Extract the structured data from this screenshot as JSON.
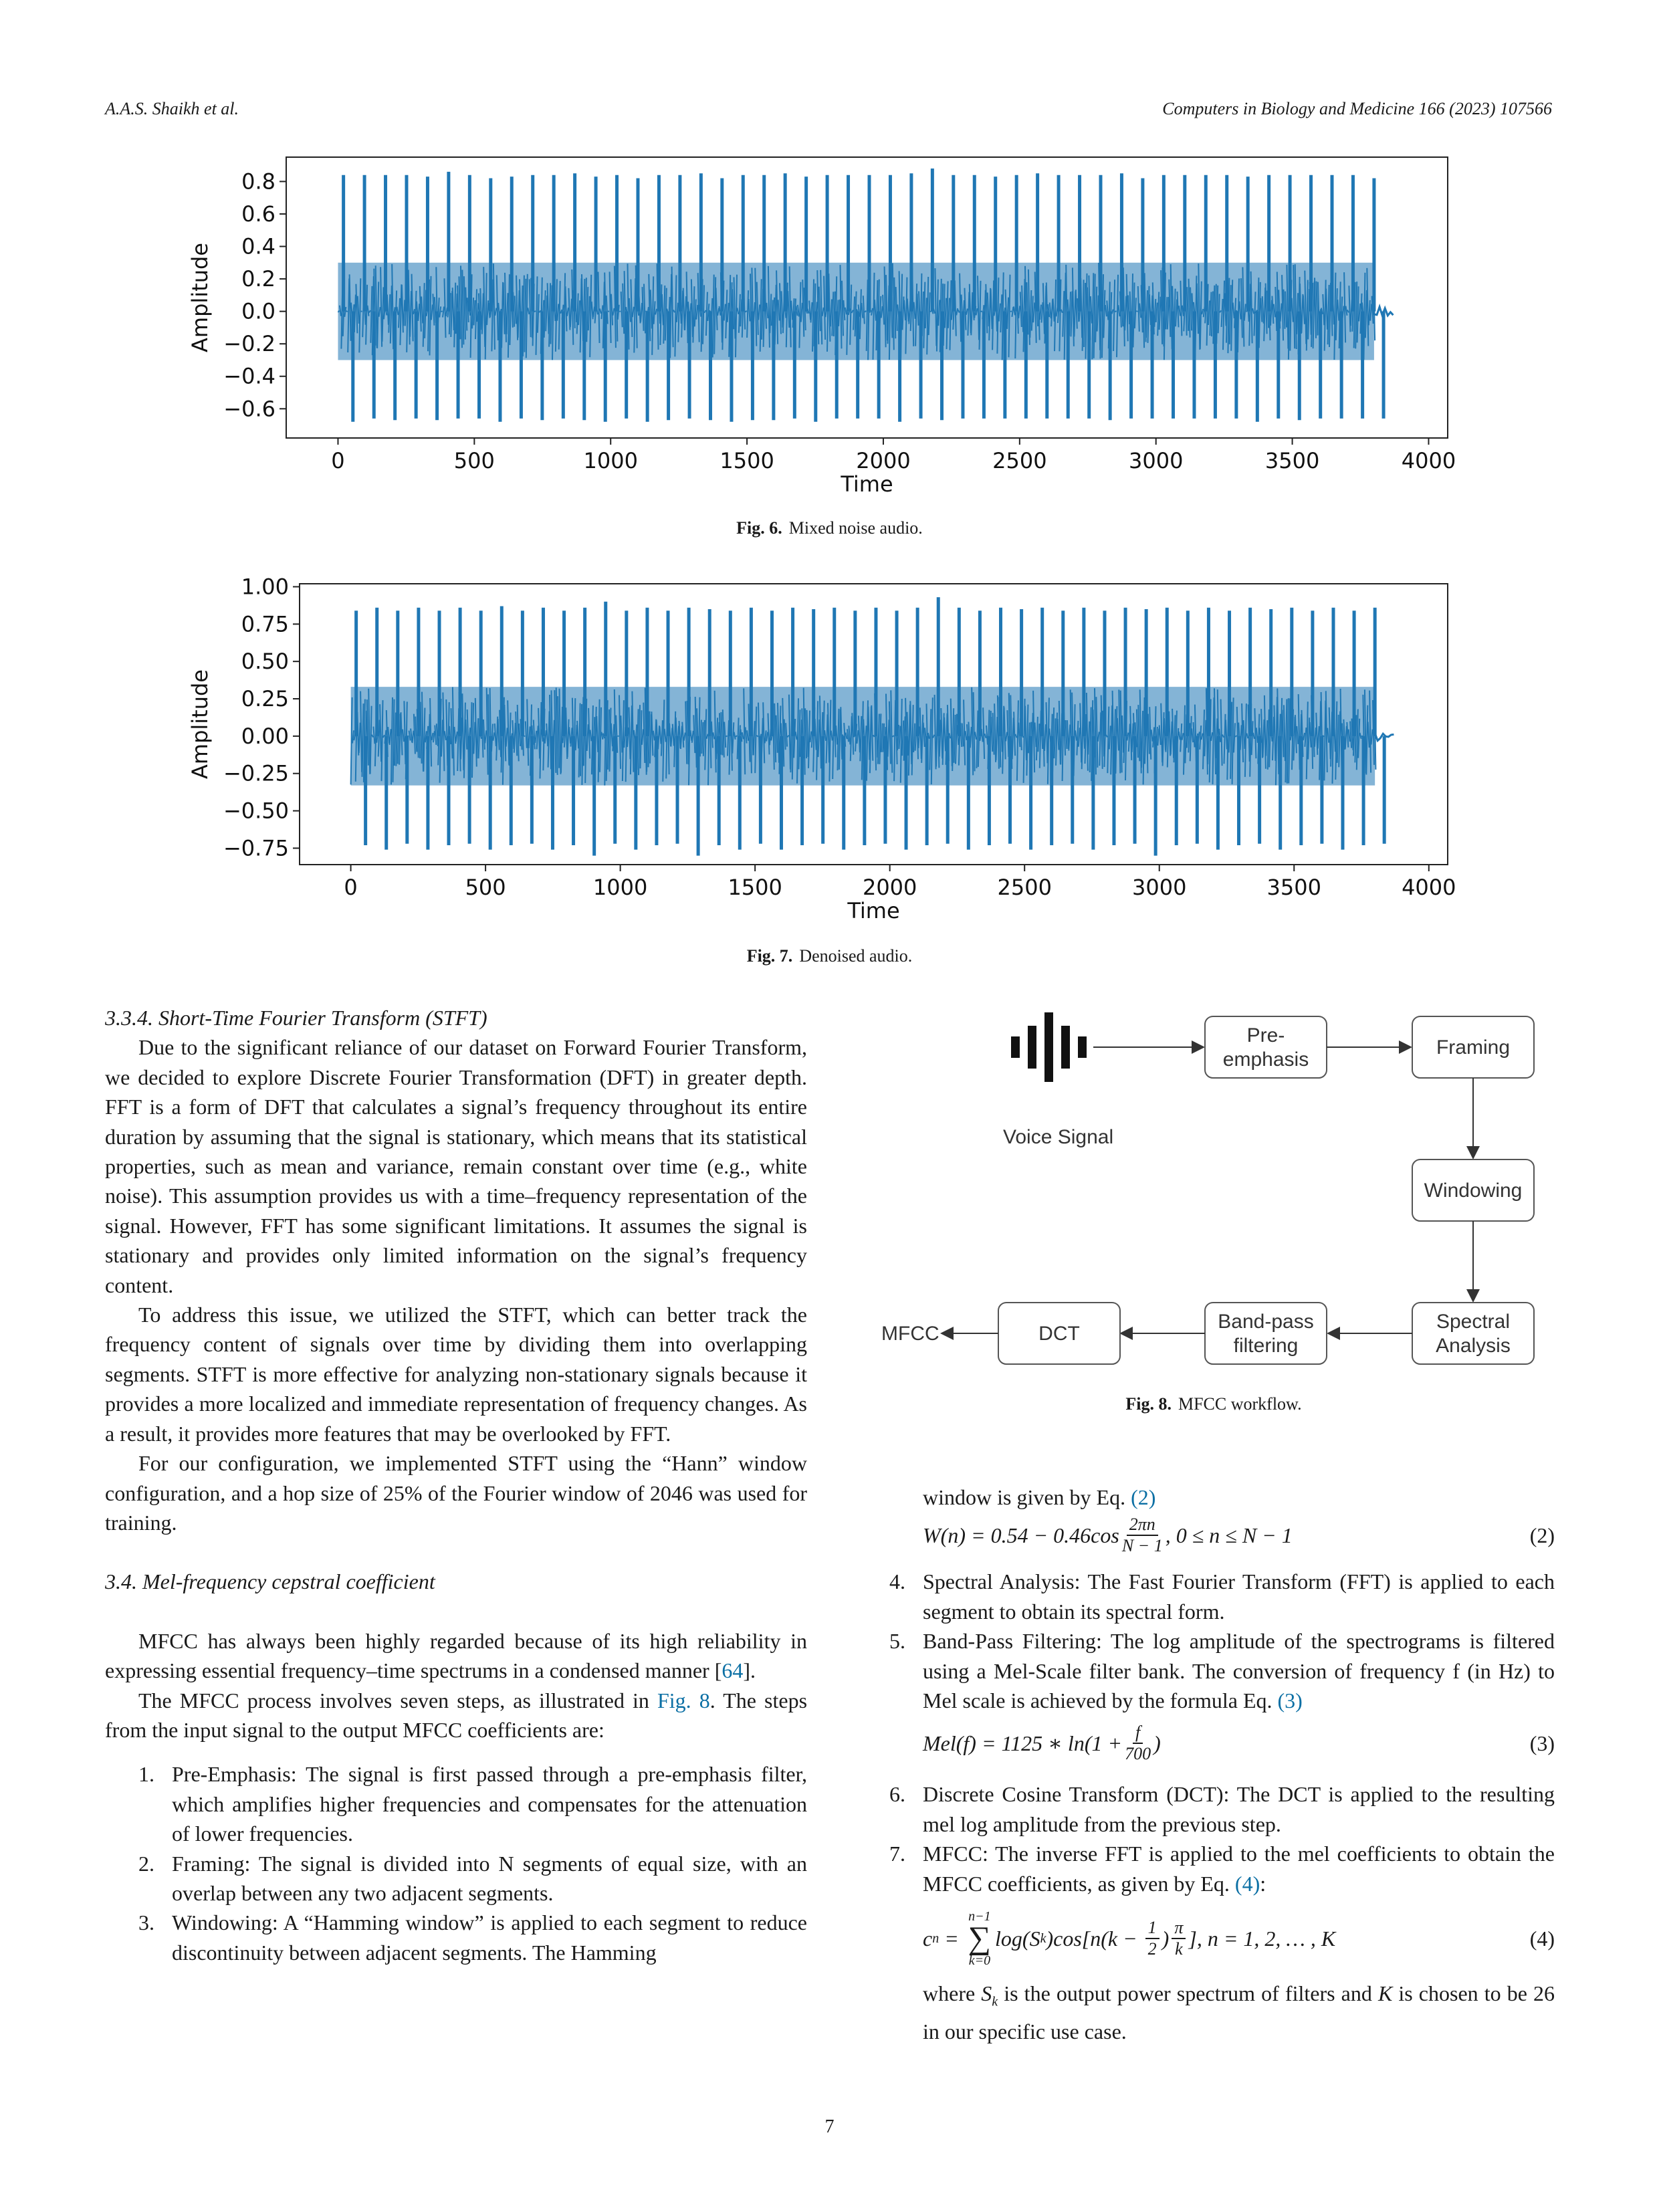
{
  "header": {
    "left": "A.A.S. Shaikh et al.",
    "right": "Computers in Biology and Medicine 166 (2023) 107566"
  },
  "figures": {
    "fig6": {
      "label": "Fig. 6.",
      "text": "Mixed noise audio."
    },
    "fig7": {
      "label": "Fig. 7.",
      "text": "Denoised audio."
    },
    "fig8": {
      "label": "Fig. 8.",
      "text": "MFCC workflow."
    }
  },
  "chart_data": [
    {
      "type": "line",
      "series_color": "#1f77b4",
      "xlabel": "Time",
      "ylabel": "Amplitude",
      "xticks": [
        "0",
        "500",
        "1000",
        "1500",
        "2000",
        "2500",
        "3000",
        "3500",
        "4000"
      ],
      "yticks": [
        "0.8",
        "0.6",
        "0.4",
        "0.2",
        "0.0",
        "−0.2",
        "−0.4",
        "−0.6"
      ],
      "xlim": [
        -190,
        4070
      ],
      "ylim": [
        -0.78,
        0.95
      ],
      "x_extent": [
        0,
        3870
      ],
      "signal_end": 3800,
      "peaks": [
        0.84,
        0.84,
        0.84,
        0.84,
        0.83,
        0.86,
        0.84,
        0.82,
        0.83,
        0.84,
        0.84,
        0.85,
        0.83,
        0.84,
        0.82,
        0.84,
        0.84,
        0.85,
        0.82,
        0.84,
        0.84,
        0.85,
        0.83,
        0.84,
        0.84,
        0.84,
        0.84,
        0.85,
        0.88,
        0.84,
        0.84,
        0.83,
        0.84,
        0.85,
        0.84,
        0.84,
        0.84,
        0.85,
        0.82,
        0.84,
        0.84,
        0.84,
        0.84,
        0.83,
        0.84,
        0.84,
        0.84,
        0.84,
        0.84,
        0.82
      ],
      "troughs": [
        -0.68,
        -0.66,
        -0.67,
        -0.66,
        -0.67,
        -0.66,
        -0.66,
        -0.68,
        -0.66,
        -0.67,
        -0.66,
        -0.67,
        -0.68,
        -0.66,
        -0.68,
        -0.67,
        -0.66,
        -0.67,
        -0.68,
        -0.67,
        -0.67,
        -0.66,
        -0.68,
        -0.66,
        -0.66,
        -0.66,
        -0.68,
        -0.66,
        -0.67,
        -0.66,
        -0.66,
        -0.66,
        -0.66,
        -0.66,
        -0.66,
        -0.66,
        -0.67,
        -0.66,
        -0.66,
        -0.66,
        -0.66,
        -0.66,
        -0.66,
        -0.68,
        -0.66,
        -0.67,
        -0.66,
        -0.66,
        -0.66,
        -0.66
      ],
      "noise_band": [
        -0.3,
        0.3
      ]
    },
    {
      "type": "line",
      "series_color": "#1f77b4",
      "xlabel": "Time",
      "ylabel": "Amplitude",
      "xticks": [
        "0",
        "500",
        "1000",
        "1500",
        "2000",
        "2500",
        "3000",
        "3500",
        "4000"
      ],
      "yticks": [
        "1.00",
        "0.75",
        "0.50",
        "0.25",
        "0.00",
        "−0.25",
        "−0.50",
        "−0.75"
      ],
      "xlim": [
        -190,
        4070
      ],
      "ylim": [
        -0.86,
        1.02
      ],
      "x_extent": [
        0,
        3870
      ],
      "signal_end": 3800,
      "peaks": [
        0.84,
        0.86,
        0.84,
        0.86,
        0.84,
        0.86,
        0.84,
        0.87,
        0.84,
        0.86,
        0.84,
        0.86,
        0.9,
        0.84,
        0.86,
        0.84,
        0.86,
        0.85,
        0.84,
        0.86,
        0.84,
        0.86,
        0.85,
        0.86,
        0.84,
        0.86,
        0.84,
        0.86,
        0.93,
        0.86,
        0.84,
        0.86,
        0.85,
        0.86,
        0.84,
        0.86,
        0.84,
        0.86,
        0.85,
        0.86,
        0.84,
        0.86,
        0.84,
        0.86,
        0.85,
        0.86,
        0.84,
        0.86,
        0.84,
        0.86
      ],
      "troughs": [
        -0.73,
        -0.76,
        -0.72,
        -0.76,
        -0.73,
        -0.72,
        -0.76,
        -0.73,
        -0.72,
        -0.76,
        -0.73,
        -0.8,
        -0.72,
        -0.76,
        -0.73,
        -0.72,
        -0.8,
        -0.73,
        -0.76,
        -0.72,
        -0.76,
        -0.73,
        -0.72,
        -0.76,
        -0.73,
        -0.72,
        -0.76,
        -0.73,
        -0.72,
        -0.76,
        -0.73,
        -0.72,
        -0.76,
        -0.73,
        -0.72,
        -0.76,
        -0.73,
        -0.72,
        -0.8,
        -0.73,
        -0.72,
        -0.76,
        -0.73,
        -0.72,
        -0.76,
        -0.73,
        -0.72,
        -0.76,
        -0.73,
        -0.72
      ],
      "noise_band": [
        -0.33,
        0.33
      ]
    }
  ],
  "left_column": {
    "section_334": "3.3.4. Short-Time Fourier Transform (STFT)",
    "p1": "Due to the significant reliance of our dataset on Forward Fourier Transform, we decided to explore Discrete Fourier Transformation (DFT) in greater depth. FFT is a form of DFT that calculates a signal’s frequency throughout its entire duration by assuming that the signal is stationary, which means that its statistical properties, such as mean and variance, remain constant over time (e.g., white noise). This assumption provides us with a time–frequency representation of the signal. However, FFT has some significant limitations. It assumes the signal is stationary and provides only limited information on the signal’s frequency content.",
    "p2": "To address this issue, we utilized the STFT, which can better track the frequency content of signals over time by dividing them into overlapping segments. STFT is more effective for analyzing non-stationary signals because it provides a more localized and immediate representation of frequency changes. As a result, it provides more features that may be overlooked by FFT.",
    "p3": "For our configuration, we implemented STFT using the “Hann” window configuration, and a hop size of 25% of the Fourier window of 2046 was used for training.",
    "section_34": "3.4. Mel-frequency cepstral coefficient",
    "p4a": "MFCC has always been highly regarded because of its high reliability in expressing essential frequency–time spectrums in a condensed manner [",
    "p4ref": "64",
    "p4b": "].",
    "p5a": "The MFCC process involves seven steps, as illustrated in ",
    "p5ref": "Fig. 8",
    "p5b": ". The steps from the input signal to the output MFCC coefficients are:",
    "steps": [
      {
        "num": "1.",
        "text": "Pre-Emphasis: The signal is first passed through a pre-emphasis filter, which amplifies higher frequencies and compensates for the attenuation of lower frequencies."
      },
      {
        "num": "2.",
        "text": "Framing: The signal is divided into N segments of equal size, with an overlap between any two adjacent segments."
      },
      {
        "num": "3.",
        "text": "Windowing: A “Hamming window” is applied to each segment to reduce discontinuity between adjacent segments. The Hamming"
      }
    ]
  },
  "right_column": {
    "cont_a": "window is given by Eq. ",
    "cont_ref": "(2)",
    "eq2_lhs": "W(n) = 0.54 − 0.46cos",
    "eq2_num": "2πn",
    "eq2_den": "N − 1",
    "eq2_rhs": ", 0 ≤ n ≤ N − 1",
    "eq2_no": "(2)",
    "step4_num": "4.",
    "step4": "Spectral Analysis: The Fast Fourier Transform (FFT) is applied to each segment to obtain its spectral form.",
    "step5_num": "5.",
    "step5a": "Band-Pass Filtering: The log amplitude of the spectrograms is filtered using a Mel-Scale filter bank. The conversion of frequency f (in Hz) to Mel scale is achieved by the formula Eq. ",
    "step5_ref": "(3)",
    "eq3_lhs": "Mel(f) = 1125 ∗ ln(1 + ",
    "eq3_num": "f",
    "eq3_den": "700",
    "eq3_rhs": ")",
    "eq3_no": "(3)",
    "step6_num": "6.",
    "step6": "Discrete Cosine Transform (DCT): The DCT is applied to the resulting mel log amplitude from the previous step.",
    "step7_num": "7.",
    "step7a": "MFCC: The inverse FFT is applied to the mel coefficients to obtain the MFCC coefficients, as given by Eq. ",
    "step7_ref": "(4)",
    "step7b": ":",
    "eq4_lhs": "c",
    "eq4_sub": "n",
    "eq4_eq": " = ",
    "eq4_sum_top": "n−1",
    "eq4_sum_sym": "∑",
    "eq4_sum_bot": "k=0",
    "eq4_body1": "log(S",
    "eq4_body_sub": "k",
    "eq4_body2": ")cos[n(k − ",
    "eq4_half_num": "1",
    "eq4_half_den": "2",
    "eq4_body3": ")",
    "eq4_pi_num": "π",
    "eq4_pi_den": "k",
    "eq4_body4": "], n = 1, 2, … , K",
    "eq4_no": "(4)",
    "after_a": "where ",
    "after_s": "S",
    "after_sub": "k",
    "after_b": " is the output power spectrum of filters and ",
    "after_k": "K",
    "after_c": " is chosen to be 26 in our specific use case."
  },
  "flowchart": {
    "voice_label": "Voice Signal",
    "pre_emphasis_1": "Pre-",
    "pre_emphasis_2": "emphasis",
    "framing": "Framing",
    "windowing": "Windowing",
    "spectral_1": "Spectral",
    "spectral_2": "Analysis",
    "bandpass_1": "Band-pass",
    "bandpass_2": "filtering",
    "dct": "DCT",
    "mfcc": "MFCC"
  },
  "page_number": "7"
}
